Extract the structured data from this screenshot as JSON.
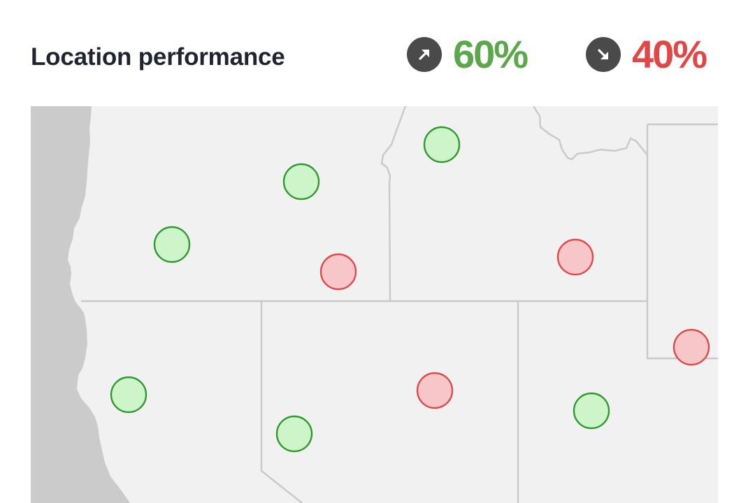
{
  "header": {
    "title": "Location performance"
  },
  "stats": {
    "up": {
      "value": "60%",
      "icon": "arrow-up-right-icon",
      "color": "#5aa84a"
    },
    "down": {
      "value": "40%",
      "icon": "arrow-down-right-icon",
      "color": "#e04848"
    }
  },
  "map": {
    "colors": {
      "land": "#f1f1f1",
      "ocean": "#cbcbcb",
      "border": "#c9c9c9",
      "positive_fill": "#cdf5c9",
      "positive_stroke": "#2e9a2e",
      "negative_fill": "#f6c6c8",
      "negative_stroke": "#de4a4a"
    },
    "locations": [
      {
        "status": "positive"
      },
      {
        "status": "positive"
      },
      {
        "status": "positive"
      },
      {
        "status": "negative"
      },
      {
        "status": "negative"
      },
      {
        "status": "negative"
      },
      {
        "status": "positive"
      },
      {
        "status": "positive"
      },
      {
        "status": "negative"
      },
      {
        "status": "positive"
      }
    ]
  }
}
